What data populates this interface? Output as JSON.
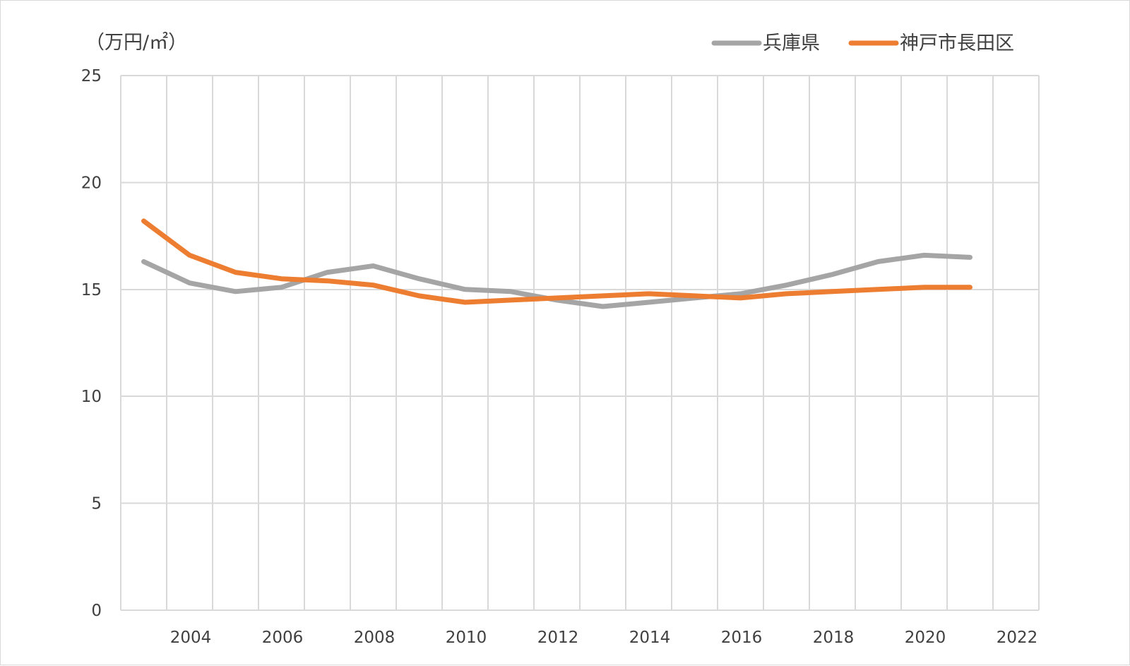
{
  "chart_data": {
    "type": "line",
    "unit_label": "（万円/㎡）",
    "x_ticks": [
      "2004",
      "2006",
      "2008",
      "2010",
      "2012",
      "2014",
      "2016",
      "2018",
      "2020",
      "2022"
    ],
    "y_ticks": [
      "0",
      "5",
      "10",
      "15",
      "20",
      "25"
    ],
    "xlim": [
      2002,
      2022
    ],
    "ylim": [
      0,
      25
    ],
    "grid": true,
    "legend_position": "top-right",
    "x": [
      2002.5,
      2003.5,
      2004.5,
      2005.5,
      2006.5,
      2007.5,
      2008.5,
      2009.5,
      2010.5,
      2011.5,
      2012.5,
      2013.5,
      2014.5,
      2015.5,
      2016.5,
      2017.5,
      2018.5,
      2019.5,
      2020.5
    ],
    "series": [
      {
        "name": "兵庫県",
        "color": "#a5a5a5",
        "values": [
          16.3,
          15.3,
          14.9,
          15.1,
          15.8,
          16.1,
          15.5,
          15.0,
          14.9,
          14.5,
          14.2,
          14.4,
          14.6,
          14.8,
          15.2,
          15.7,
          16.3,
          16.6,
          16.5
        ]
      },
      {
        "name": "神戸市長田区",
        "color": "#ed7d31",
        "values": [
          18.2,
          16.6,
          15.8,
          15.5,
          15.4,
          15.2,
          14.7,
          14.4,
          14.5,
          14.6,
          14.7,
          14.8,
          14.7,
          14.6,
          14.8,
          14.9,
          15.0,
          15.1,
          15.1
        ]
      }
    ]
  }
}
